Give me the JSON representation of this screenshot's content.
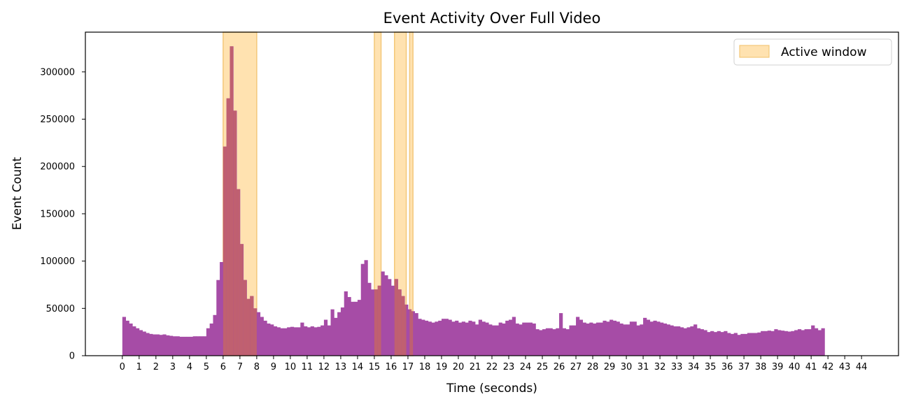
{
  "chart_data": {
    "type": "bar",
    "title": "Event Activity Over Full Video",
    "xlabel": "Time (seconds)",
    "ylabel": "Event Count",
    "xlim": [
      -2.2,
      46.2
    ],
    "ylim": [
      0,
      342000
    ],
    "bin_width_seconds": 0.2,
    "bar_start_seconds": 0,
    "x_ticks": [
      0,
      1,
      2,
      3,
      4,
      5,
      6,
      7,
      8,
      9,
      10,
      11,
      12,
      13,
      14,
      15,
      16,
      17,
      18,
      19,
      20,
      21,
      22,
      23,
      24,
      25,
      26,
      27,
      28,
      29,
      30,
      31,
      32,
      33,
      34,
      35,
      36,
      37,
      38,
      39,
      40,
      41,
      42,
      43,
      44
    ],
    "y_ticks": [
      0,
      50000,
      100000,
      150000,
      200000,
      250000,
      300000
    ],
    "values": [
      41000,
      37000,
      34000,
      31000,
      29000,
      27000,
      25500,
      24000,
      23000,
      22500,
      22500,
      22000,
      22500,
      21500,
      21000,
      20500,
      20500,
      20000,
      20000,
      20000,
      20000,
      20500,
      20500,
      20500,
      20500,
      29000,
      34000,
      43000,
      80000,
      99000,
      221000,
      272000,
      327000,
      259000,
      176000,
      118000,
      80000,
      60000,
      63000,
      50000,
      46000,
      41000,
      37000,
      34000,
      33000,
      31000,
      30000,
      29000,
      29000,
      30000,
      30500,
      30000,
      30000,
      35000,
      31000,
      30000,
      31000,
      30000,
      30500,
      32000,
      38000,
      32000,
      49000,
      40000,
      46000,
      51000,
      68000,
      62000,
      57000,
      57000,
      59000,
      97000,
      101000,
      77000,
      70000,
      70000,
      74000,
      89000,
      85000,
      81000,
      74000,
      81000,
      70000,
      63000,
      54000,
      49000,
      47000,
      45000,
      39000,
      38000,
      37000,
      36000,
      35000,
      36000,
      37000,
      39000,
      39000,
      38000,
      36000,
      37000,
      35000,
      36000,
      35000,
      37000,
      36000,
      33000,
      38000,
      36000,
      35000,
      33000,
      32000,
      32000,
      35000,
      34000,
      37000,
      38000,
      41000,
      34000,
      33000,
      35000,
      35000,
      35000,
      34000,
      28000,
      27000,
      28000,
      29000,
      29000,
      28000,
      29000,
      45000,
      29000,
      28000,
      32000,
      32000,
      41000,
      38000,
      35000,
      34000,
      35000,
      34000,
      35000,
      35000,
      37000,
      36000,
      38000,
      37000,
      36000,
      34000,
      33000,
      33000,
      36000,
      36000,
      32000,
      33000,
      40000,
      38000,
      36000,
      37000,
      36000,
      35000,
      34000,
      33000,
      32000,
      31000,
      31000,
      30000,
      29000,
      30000,
      31000,
      33000,
      29000,
      28000,
      27000,
      25000,
      26000,
      25000,
      26000,
      25000,
      26000,
      24000,
      23000,
      24000,
      22000,
      23000,
      23000,
      24000,
      24000,
      24000,
      24500,
      26000,
      26000,
      26500,
      26000,
      28000,
      27000,
      26500,
      26000,
      25500,
      26000,
      27000,
      28000,
      27000,
      28000,
      28000,
      32000,
      29000,
      27000,
      29000
    ],
    "bar_color": "#a64ca6",
    "active_windows": [
      [
        6.0,
        8.0
      ],
      [
        15.0,
        15.4
      ],
      [
        16.2,
        16.9
      ],
      [
        17.1,
        17.3
      ]
    ],
    "window_color": "#ffe2b0",
    "window_edge_color": "#f3c87a",
    "overlap_color": "#c06070",
    "legend": {
      "label": "Active window",
      "position": "upper right"
    }
  }
}
